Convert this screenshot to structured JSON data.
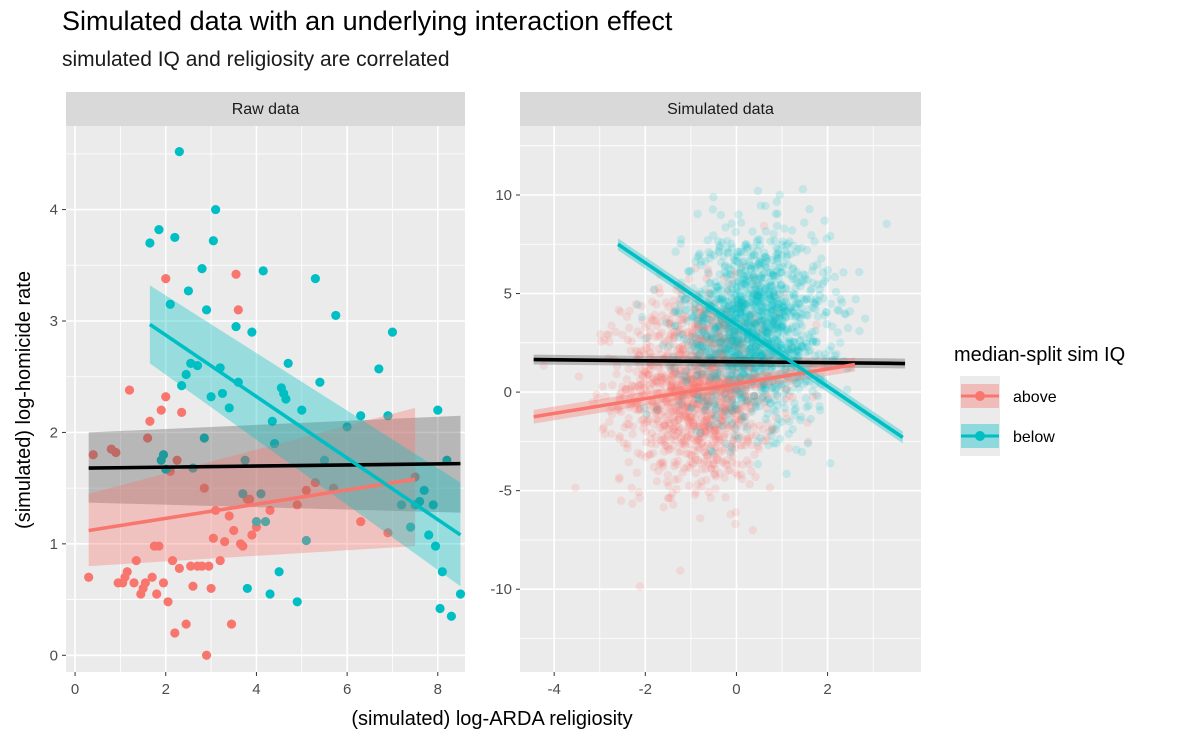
{
  "title": "Simulated data with an underlying interaction effect",
  "subtitle": "simulated IQ and religiosity are correlated",
  "chart_data": {
    "type": "scatter",
    "xlabel": "(simulated) log-ARDA religiosity",
    "ylabel": "(simulated) log-homicide rate",
    "legend": {
      "title": "median-split sim IQ",
      "placement": "right",
      "entries": [
        {
          "label": "above",
          "color": "#F8766D"
        },
        {
          "label": "below",
          "color": "#00BFC4"
        }
      ]
    },
    "grid": true,
    "panels": [
      {
        "strip": "Raw data",
        "xlim": [
          -0.2,
          8.6
        ],
        "ylim": [
          -0.15,
          4.75
        ],
        "xticks": [
          0,
          2,
          4,
          6,
          8
        ],
        "yticks": [
          0,
          1,
          2,
          3,
          4
        ],
        "series": [
          {
            "name": "above",
            "color": "#F8766D",
            "points": [
              [
                0.3,
                0.7
              ],
              [
                0.4,
                1.8
              ],
              [
                0.8,
                1.85
              ],
              [
                0.9,
                1.82
              ],
              [
                0.95,
                0.65
              ],
              [
                1.05,
                0.65
              ],
              [
                1.1,
                0.7
              ],
              [
                1.15,
                0.75
              ],
              [
                1.2,
                2.38
              ],
              [
                1.3,
                0.65
              ],
              [
                1.35,
                0.85
              ],
              [
                1.45,
                0.55
              ],
              [
                1.5,
                0.6
              ],
              [
                1.55,
                0.65
              ],
              [
                1.6,
                1.95
              ],
              [
                1.65,
                2.1
              ],
              [
                1.7,
                0.7
              ],
              [
                1.75,
                0.98
              ],
              [
                1.8,
                0.55
              ],
              [
                1.85,
                0.98
              ],
              [
                1.9,
                2.2
              ],
              [
                1.95,
                0.65
              ],
              [
                2.0,
                2.32
              ],
              [
                2.0,
                3.38
              ],
              [
                2.05,
                0.48
              ],
              [
                2.1,
                1.65
              ],
              [
                2.15,
                0.85
              ],
              [
                2.2,
                0.2
              ],
              [
                2.25,
                1.75
              ],
              [
                2.3,
                0.78
              ],
              [
                2.35,
                2.18
              ],
              [
                2.45,
                0.28
              ],
              [
                2.55,
                0.8
              ],
              [
                2.6,
                0.62
              ],
              [
                2.7,
                0.8
              ],
              [
                2.8,
                0.8
              ],
              [
                2.85,
                1.5
              ],
              [
                2.9,
                0.0
              ],
              [
                2.95,
                0.8
              ],
              [
                3.0,
                0.6
              ],
              [
                3.05,
                1.05
              ],
              [
                3.1,
                1.3
              ],
              [
                3.2,
                0.85
              ],
              [
                3.3,
                1.02
              ],
              [
                3.4,
                1.25
              ],
              [
                3.45,
                0.28
              ],
              [
                3.5,
                1.12
              ],
              [
                3.55,
                3.42
              ],
              [
                3.6,
                3.1
              ],
              [
                3.65,
                1.0
              ],
              [
                3.7,
                0.98
              ],
              [
                3.8,
                1.4
              ],
              [
                3.85,
                1.4
              ],
              [
                3.9,
                1.08
              ],
              [
                4.0,
                1.15
              ],
              [
                4.3,
                1.3
              ],
              [
                4.9,
                1.35
              ],
              [
                5.1,
                1.48
              ],
              [
                5.3,
                1.55
              ],
              [
                5.7,
                1.5
              ],
              [
                6.3,
                1.2
              ],
              [
                6.9,
                1.1
              ],
              [
                7.5,
                1.6
              ]
            ]
          },
          {
            "name": "below",
            "color": "#00BFC4",
            "points": [
              [
                1.65,
                3.7
              ],
              [
                1.85,
                3.82
              ],
              [
                1.9,
                1.75
              ],
              [
                1.95,
                1.8
              ],
              [
                2.0,
                1.67
              ],
              [
                2.1,
                3.15
              ],
              [
                2.2,
                3.75
              ],
              [
                2.3,
                4.52
              ],
              [
                2.35,
                2.42
              ],
              [
                2.45,
                2.52
              ],
              [
                2.5,
                3.27
              ],
              [
                2.55,
                2.62
              ],
              [
                2.6,
                1.68
              ],
              [
                2.7,
                2.6
              ],
              [
                2.8,
                3.47
              ],
              [
                2.85,
                1.95
              ],
              [
                2.9,
                3.1
              ],
              [
                3.0,
                2.32
              ],
              [
                3.05,
                3.72
              ],
              [
                3.1,
                4.0
              ],
              [
                3.2,
                2.58
              ],
              [
                3.25,
                2.35
              ],
              [
                3.4,
                2.22
              ],
              [
                3.55,
                2.95
              ],
              [
                3.6,
                2.45
              ],
              [
                3.7,
                1.45
              ],
              [
                3.75,
                1.75
              ],
              [
                3.8,
                0.6
              ],
              [
                3.9,
                2.9
              ],
              [
                4.0,
                1.2
              ],
              [
                4.1,
                1.45
              ],
              [
                4.15,
                3.45
              ],
              [
                4.2,
                1.2
              ],
              [
                4.3,
                0.55
              ],
              [
                4.35,
                2.1
              ],
              [
                4.4,
                1.9
              ],
              [
                4.5,
                0.75
              ],
              [
                4.55,
                2.4
              ],
              [
                4.6,
                2.35
              ],
              [
                4.65,
                2.3
              ],
              [
                4.7,
                2.62
              ],
              [
                4.9,
                0.48
              ],
              [
                5.0,
                2.2
              ],
              [
                5.1,
                1.03
              ],
              [
                5.3,
                3.38
              ],
              [
                5.4,
                2.45
              ],
              [
                5.5,
                1.75
              ],
              [
                5.75,
                3.05
              ],
              [
                6.0,
                2.05
              ],
              [
                6.3,
                2.15
              ],
              [
                6.7,
                2.57
              ],
              [
                6.9,
                2.15
              ],
              [
                7.0,
                2.9
              ],
              [
                7.2,
                1.35
              ],
              [
                7.4,
                1.15
              ],
              [
                7.5,
                1.35
              ],
              [
                7.6,
                1.38
              ],
              [
                7.7,
                1.48
              ],
              [
                7.8,
                1.08
              ],
              [
                7.9,
                1.35
              ],
              [
                7.95,
                0.98
              ],
              [
                8.0,
                2.2
              ],
              [
                8.05,
                0.42
              ],
              [
                8.1,
                0.75
              ],
              [
                8.2,
                1.75
              ],
              [
                8.3,
                0.35
              ],
              [
                8.5,
                0.55
              ]
            ]
          }
        ],
        "fits": [
          {
            "group": "overall",
            "color": "#000000",
            "x": [
              0.3,
              8.5
            ],
            "y": [
              1.68,
              1.72
            ],
            "ci_low": [
              1.37,
              1.28
            ],
            "ci_high": [
              2.0,
              2.15
            ]
          },
          {
            "group": "above",
            "color": "#F8766D",
            "x": [
              0.3,
              7.5
            ],
            "y": [
              1.12,
              1.58
            ],
            "ci_low": [
              0.8,
              0.98
            ],
            "ci_high": [
              1.45,
              2.22
            ]
          },
          {
            "group": "below",
            "color": "#00BFC4",
            "x": [
              1.65,
              8.5
            ],
            "y": [
              2.97,
              1.08
            ],
            "ci_low": [
              2.62,
              0.62
            ],
            "ci_high": [
              3.32,
              1.55
            ]
          }
        ]
      },
      {
        "strip": "Simulated data",
        "xlim": [
          -4.75,
          4.05
        ],
        "ylim": [
          -14.2,
          13.5
        ],
        "xticks": [
          -4,
          -2,
          0,
          2
        ],
        "yticks": [
          -10,
          -5,
          0,
          5,
          10
        ],
        "cloud": [
          {
            "name": "above",
            "color": "#F8766D",
            "center": [
              -0.8,
              0.2
            ],
            "sd": [
              0.85,
              2.4
            ],
            "n": 1400,
            "alpha": 0.16
          },
          {
            "name": "below",
            "color": "#00BFC4",
            "center": [
              0.4,
              3.3
            ],
            "sd": [
              0.8,
              2.4
            ],
            "n": 1400,
            "alpha": 0.16
          }
        ],
        "fits": [
          {
            "group": "overall",
            "color": "#000000",
            "x": [
              -4.45,
              3.7
            ],
            "y": [
              1.65,
              1.45
            ],
            "ci_low": [
              1.4,
              1.2
            ],
            "ci_high": [
              1.9,
              1.7
            ]
          },
          {
            "group": "above",
            "color": "#F8766D",
            "x": [
              -4.45,
              2.6
            ],
            "y": [
              -1.25,
              1.4
            ],
            "ci_low": [
              -1.6,
              1.05
            ],
            "ci_high": [
              -0.9,
              1.75
            ]
          },
          {
            "group": "below",
            "color": "#00BFC4",
            "x": [
              -2.6,
              3.65
            ],
            "y": [
              7.5,
              -2.3
            ],
            "ci_low": [
              7.2,
              -2.6
            ],
            "ci_high": [
              7.8,
              -2.0
            ]
          }
        ]
      }
    ]
  }
}
